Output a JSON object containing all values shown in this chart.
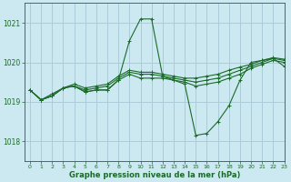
{
  "title": "Graphe pression niveau de la mer (hPa)",
  "bg_color": "#cce8f0",
  "grid_color": "#aaccd8",
  "line_color": "#1a6b2a",
  "xlim": [
    -0.5,
    23
  ],
  "ylim": [
    1017.5,
    1021.5
  ],
  "yticks": [
    1018,
    1019,
    1020,
    1021
  ],
  "xticks": [
    0,
    1,
    2,
    3,
    4,
    5,
    6,
    7,
    8,
    9,
    10,
    11,
    12,
    13,
    14,
    15,
    16,
    17,
    18,
    19,
    20,
    21,
    22,
    23
  ],
  "series": [
    [
      1019.3,
      1019.05,
      1019.15,
      1019.35,
      1019.4,
      1019.25,
      1019.3,
      1019.3,
      1019.55,
      1020.55,
      1021.1,
      1021.1,
      1019.65,
      1019.55,
      1019.45,
      1018.15,
      1018.2,
      1018.5,
      1018.9,
      1019.55,
      1020.0,
      1020.05,
      1020.1,
      1019.9
    ],
    [
      1019.3,
      1019.05,
      1019.15,
      1019.35,
      1019.4,
      1019.25,
      1019.3,
      1019.3,
      1019.55,
      1019.7,
      1019.6,
      1019.6,
      1019.6,
      1019.55,
      1019.5,
      1019.4,
      1019.45,
      1019.5,
      1019.6,
      1019.7,
      1019.85,
      1019.95,
      1020.05,
      1020.0
    ],
    [
      1019.3,
      1019.05,
      1019.15,
      1019.35,
      1019.4,
      1019.3,
      1019.35,
      1019.4,
      1019.6,
      1019.75,
      1019.7,
      1019.7,
      1019.65,
      1019.6,
      1019.55,
      1019.5,
      1019.55,
      1019.6,
      1019.7,
      1019.8,
      1019.9,
      1020.0,
      1020.1,
      1020.05
    ],
    [
      1019.3,
      1019.05,
      1019.2,
      1019.35,
      1019.45,
      1019.35,
      1019.4,
      1019.45,
      1019.65,
      1019.8,
      1019.75,
      1019.75,
      1019.7,
      1019.65,
      1019.6,
      1019.6,
      1019.65,
      1019.7,
      1019.8,
      1019.88,
      1019.95,
      1020.05,
      1020.12,
      1020.08
    ]
  ]
}
